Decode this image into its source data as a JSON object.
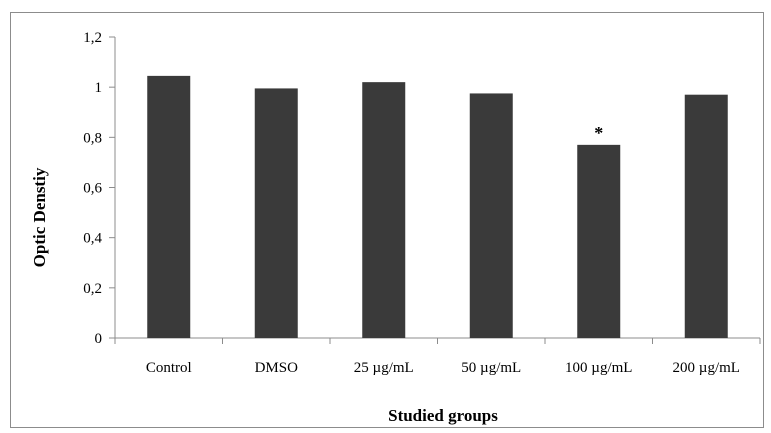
{
  "chart_data": {
    "type": "bar",
    "categories": [
      "Control",
      "DMSO",
      "25 µg/mL",
      "50 µg/mL",
      "100 µg/mL",
      "200 µg/mL"
    ],
    "values": [
      1.045,
      0.995,
      1.02,
      0.975,
      0.77,
      0.97
    ],
    "xlabel": "Studied groups",
    "ylabel": "Optic Denstiy",
    "ylim": [
      0,
      1.2
    ],
    "yticks": [
      0,
      0.2,
      0.4,
      0.6,
      0.8,
      1,
      1.2
    ],
    "ytick_labels": [
      "0",
      "0,2",
      "0,4",
      "0,6",
      "0,8",
      "1",
      "1,2"
    ],
    "annotations": [
      {
        "category": "100 µg/mL",
        "text": "*"
      }
    ],
    "bar_color": "#3a3a3a",
    "grid": false,
    "legend": "none"
  }
}
